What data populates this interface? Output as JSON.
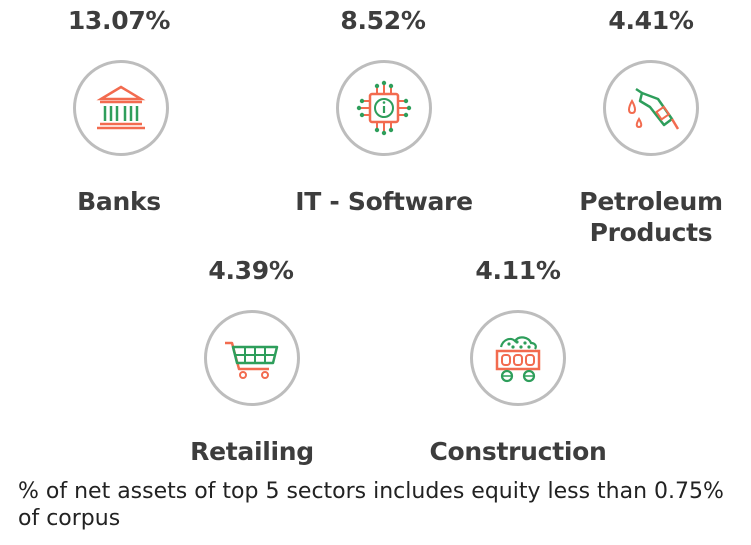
{
  "sectors": [
    {
      "name": "Banks",
      "percent": "13.07%",
      "icon": "bank-icon"
    },
    {
      "name": "IT - Software",
      "percent": "8.52%",
      "icon": "chip-icon"
    },
    {
      "name": "Petroleum Products",
      "name_line1": "Petroleum",
      "name_line2": "Products",
      "percent": "4.41%",
      "icon": "fuel-nozzle-icon"
    },
    {
      "name": "Retailing",
      "percent": "4.39%",
      "icon": "shopping-cart-icon"
    },
    {
      "name": "Construction",
      "percent": "4.11%",
      "icon": "mine-cart-icon"
    }
  ],
  "footnote": "% of net assets of top 5 sectors includes equity less than 0.75% of corpus",
  "colors": {
    "green": "#2e9e5b",
    "orange": "#f26b4f",
    "ring": "#bdbdbd",
    "text": "#3d3d3d"
  }
}
